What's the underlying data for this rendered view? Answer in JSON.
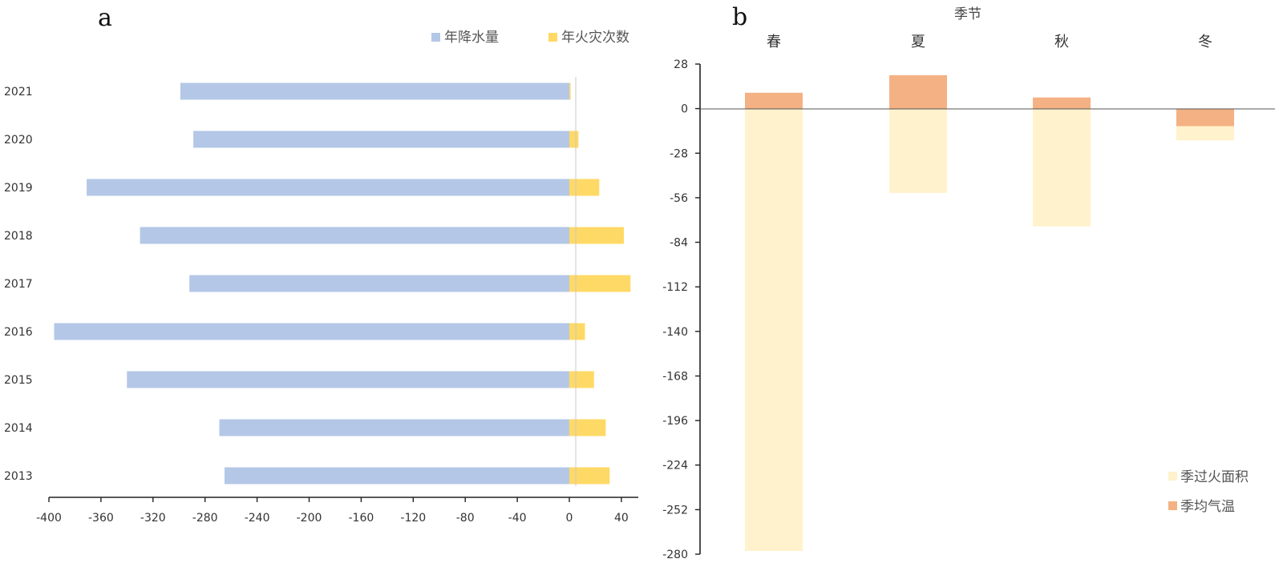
{
  "chart_data": [
    {
      "panel": "a",
      "type": "bar",
      "orientation": "horizontal",
      "categories": [
        "2013",
        "2014",
        "2015",
        "2016",
        "2017",
        "2018",
        "2019",
        "2020",
        "2021"
      ],
      "series": [
        {
          "name": "年降水量",
          "color": "#b4c7e7",
          "values": [
            -265,
            -269,
            -340,
            -396,
            -292,
            -330,
            -371,
            -289,
            -299
          ]
        },
        {
          "name": "年火灾次数",
          "color": "#ffd966",
          "values": [
            31,
            28,
            19,
            12,
            47,
            42,
            23,
            7,
            1
          ]
        }
      ],
      "xlim": [
        -400,
        45
      ],
      "xticks": [
        "-400",
        "-360",
        "-320",
        "-280",
        "-240",
        "-200",
        "-160",
        "-120",
        "-80",
        "-40",
        "0",
        "40"
      ],
      "xtick_values": [
        -400,
        -360,
        -320,
        -280,
        -240,
        -200,
        -160,
        -120,
        -80,
        -40,
        0,
        40
      ],
      "legend_position": "top-right"
    },
    {
      "panel": "b",
      "type": "bar",
      "orientation": "vertical",
      "xlabel": "季节",
      "xlabel_position": "top",
      "categories": [
        "春",
        "夏",
        "秋",
        "冬"
      ],
      "series": [
        {
          "name": "季过火面积",
          "color": "#fff2cc",
          "values": [
            -278,
            -53,
            -74,
            -20
          ]
        },
        {
          "name": "季均气温",
          "color": "#f4b183",
          "values": [
            10,
            21,
            7,
            -11
          ]
        }
      ],
      "ylim": [
        -280,
        28
      ],
      "yticks": [
        "28",
        "0",
        "-28",
        "-56",
        "-84",
        "-112",
        "-140",
        "-168",
        "-196",
        "-224",
        "-252",
        "-280"
      ],
      "ytick_values": [
        28,
        0,
        -28,
        -56,
        -84,
        -112,
        -140,
        -168,
        -196,
        -224,
        -252,
        -280
      ],
      "legend_position": "bottom-right"
    }
  ]
}
